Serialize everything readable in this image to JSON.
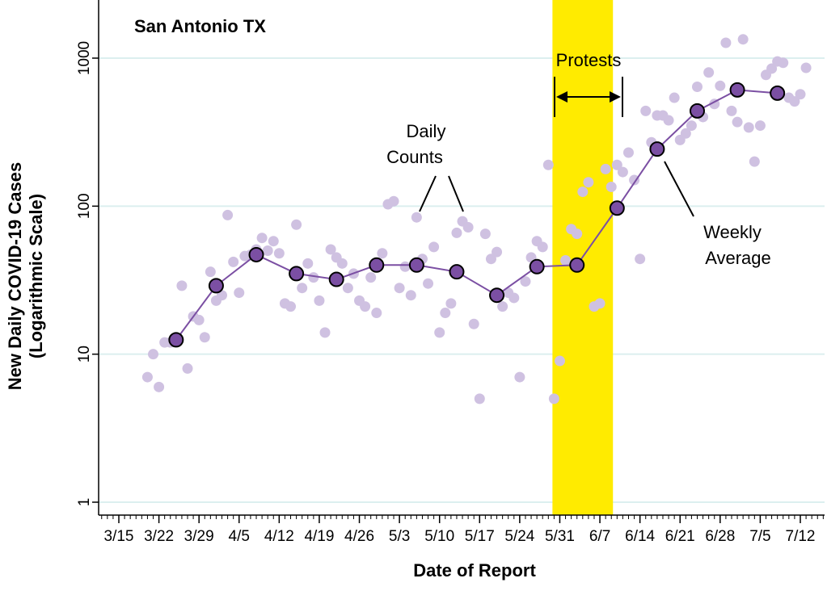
{
  "chart_data": {
    "type": "scatter",
    "title": "San Antonio TX",
    "xlabel": "Date of Report",
    "ylabel_line1": "New Daily COVID-19 Cases",
    "ylabel_line2": "(Logarithmic Scale)",
    "y_scale": "log10",
    "ylim": [
      1,
      1500
    ],
    "y_ticks": [
      1,
      10,
      100,
      1000
    ],
    "y_tick_labels": [
      "1",
      "10",
      "100",
      "1000"
    ],
    "x_range": [
      "3/12",
      "7/16"
    ],
    "x_tick_labels": [
      "3/15",
      "3/22",
      "3/29",
      "4/5",
      "4/12",
      "4/19",
      "4/26",
      "5/3",
      "5/10",
      "5/17",
      "5/24",
      "5/31",
      "6/7",
      "6/14",
      "6/21",
      "6/28",
      "7/5",
      "7/12"
    ],
    "grid": "horizontal",
    "highlight_band": {
      "label": "Protests",
      "start": "5/30",
      "end": "6/9",
      "color": "#ffeb00"
    },
    "annotations": {
      "daily_counts": {
        "line1": "Daily",
        "line2": "Counts"
      },
      "weekly_average": {
        "line1": "Weekly",
        "line2": "Average"
      },
      "protests": "Protests"
    },
    "colors": {
      "daily": "#cfc1e1",
      "weekly_line": "#7b4fa3",
      "weekly_fill": "#7b4fa3",
      "grid": "#dcefef",
      "band": "#ffeb00"
    },
    "series": [
      {
        "name": "Daily Counts",
        "points": [
          [
            "3/20",
            7
          ],
          [
            "3/21",
            10
          ],
          [
            "3/22",
            6
          ],
          [
            "3/23",
            12
          ],
          [
            "3/24",
            12
          ],
          [
            "3/25",
            13
          ],
          [
            "3/26",
            29
          ],
          [
            "3/27",
            8
          ],
          [
            "3/28",
            18
          ],
          [
            "3/29",
            17
          ],
          [
            "3/30",
            13
          ],
          [
            "3/31",
            36
          ],
          [
            "4/1",
            23
          ],
          [
            "4/2",
            25
          ],
          [
            "4/3",
            87
          ],
          [
            "4/4",
            42
          ],
          [
            "4/5",
            26
          ],
          [
            "4/6",
            46
          ],
          [
            "4/7",
            47
          ],
          [
            "4/8",
            51
          ],
          [
            "4/9",
            61
          ],
          [
            "4/10",
            50
          ],
          [
            "4/11",
            58
          ],
          [
            "4/12",
            48
          ],
          [
            "4/13",
            22
          ],
          [
            "4/14",
            21
          ],
          [
            "4/15",
            75
          ],
          [
            "4/16",
            28
          ],
          [
            "4/17",
            41
          ],
          [
            "4/18",
            33
          ],
          [
            "4/19",
            23
          ],
          [
            "4/20",
            14
          ],
          [
            "4/21",
            51
          ],
          [
            "4/22",
            45
          ],
          [
            "4/23",
            41
          ],
          [
            "4/24",
            28
          ],
          [
            "4/25",
            35
          ],
          [
            "4/26",
            23
          ],
          [
            "4/27",
            21
          ],
          [
            "4/28",
            33
          ],
          [
            "4/29",
            19
          ],
          [
            "4/30",
            48
          ],
          [
            "5/1",
            103
          ],
          [
            "5/2",
            108
          ],
          [
            "5/3",
            28
          ],
          [
            "5/4",
            39
          ],
          [
            "5/5",
            25
          ],
          [
            "5/6",
            84
          ],
          [
            "5/7",
            44
          ],
          [
            "5/8",
            30
          ],
          [
            "5/9",
            53
          ],
          [
            "5/10",
            14
          ],
          [
            "5/11",
            19
          ],
          [
            "5/12",
            22
          ],
          [
            "5/13",
            66
          ],
          [
            "5/14",
            79
          ],
          [
            "5/15",
            72
          ],
          [
            "5/16",
            16
          ],
          [
            "5/17",
            5
          ],
          [
            "5/18",
            65
          ],
          [
            "5/19",
            44
          ],
          [
            "5/20",
            49
          ],
          [
            "5/21",
            21
          ],
          [
            "5/22",
            26
          ],
          [
            "5/23",
            24
          ],
          [
            "5/24",
            7
          ],
          [
            "5/25",
            31
          ],
          [
            "5/26",
            45
          ],
          [
            "5/27",
            58
          ],
          [
            "5/28",
            53
          ],
          [
            "5/29",
            190
          ],
          [
            "5/30",
            5
          ],
          [
            "5/31",
            9
          ],
          [
            "6/1",
            43
          ],
          [
            "6/2",
            70
          ],
          [
            "6/3",
            65
          ],
          [
            "6/4",
            125
          ],
          [
            "6/5",
            145
          ],
          [
            "6/6",
            21
          ],
          [
            "6/7",
            22
          ],
          [
            "6/8",
            178
          ],
          [
            "6/9",
            135
          ],
          [
            "6/10",
            190
          ],
          [
            "6/11",
            170
          ],
          [
            "6/12",
            230
          ],
          [
            "6/13",
            150
          ],
          [
            "6/14",
            44
          ],
          [
            "6/15",
            440
          ],
          [
            "6/16",
            270
          ],
          [
            "6/17",
            410
          ],
          [
            "6/18",
            410
          ],
          [
            "6/19",
            380
          ],
          [
            "6/20",
            540
          ],
          [
            "6/21",
            280
          ],
          [
            "6/22",
            310
          ],
          [
            "6/23",
            350
          ],
          [
            "6/24",
            640
          ],
          [
            "6/25",
            400
          ],
          [
            "6/26",
            800
          ],
          [
            "6/27",
            490
          ],
          [
            "6/28",
            650
          ],
          [
            "6/29",
            1270
          ],
          [
            "6/30",
            440
          ],
          [
            "7/1",
            370
          ],
          [
            "7/2",
            1340
          ],
          [
            "7/3",
            340
          ],
          [
            "7/4",
            200
          ],
          [
            "7/5",
            350
          ],
          [
            "7/6",
            770
          ],
          [
            "7/7",
            850
          ],
          [
            "7/8",
            950
          ],
          [
            "7/9",
            930
          ],
          [
            "7/10",
            540
          ],
          [
            "7/11",
            510
          ],
          [
            "7/12",
            570
          ],
          [
            "7/13",
            860
          ]
        ]
      },
      {
        "name": "Weekly Average",
        "points": [
          [
            "3/25",
            12.5
          ],
          [
            "4/1",
            29
          ],
          [
            "4/8",
            47
          ],
          [
            "4/15",
            35
          ],
          [
            "4/22",
            32
          ],
          [
            "4/29",
            40
          ],
          [
            "5/6",
            40
          ],
          [
            "5/13",
            36
          ],
          [
            "5/20",
            25
          ],
          [
            "5/27",
            39
          ],
          [
            "6/3",
            40
          ],
          [
            "6/10",
            97
          ],
          [
            "6/17",
            243
          ],
          [
            "6/24",
            440
          ],
          [
            "7/1",
            610
          ],
          [
            "7/8",
            580
          ]
        ]
      }
    ]
  }
}
